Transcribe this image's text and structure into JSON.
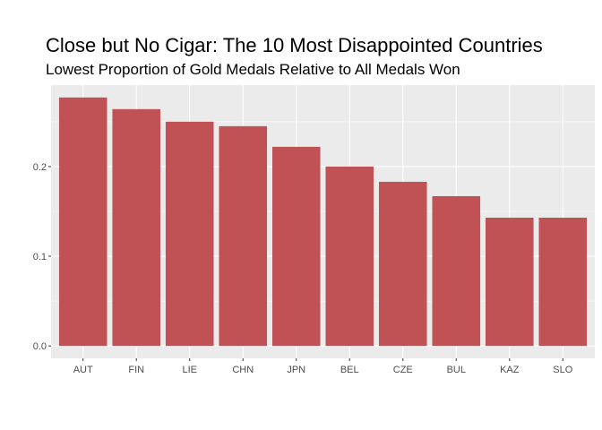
{
  "chart_data": {
    "type": "bar",
    "title": "Close but No Cigar: The 10 Most Disappointed Countries",
    "subtitle": "Lowest Proportion of Gold Medals Relative to All Medals Won",
    "xlabel": "",
    "ylabel": "",
    "categories": [
      "AUT",
      "FIN",
      "LIE",
      "CHN",
      "JPN",
      "BEL",
      "CZE",
      "BUL",
      "KAZ",
      "SLO"
    ],
    "values": [
      0.277,
      0.264,
      0.25,
      0.245,
      0.222,
      0.2,
      0.183,
      0.167,
      0.143,
      0.143
    ],
    "ylim": [
      -0.0138,
      0.2908
    ],
    "yticks": [
      0.0,
      0.1,
      0.2
    ],
    "ytick_labels": [
      "0.0",
      "0.1",
      "0.2"
    ],
    "grid": true,
    "colors": {
      "bar": "#c05256",
      "panel": "#ebebeb",
      "grid_major": "#ffffff",
      "tick_text": "#4d4d4d"
    }
  }
}
